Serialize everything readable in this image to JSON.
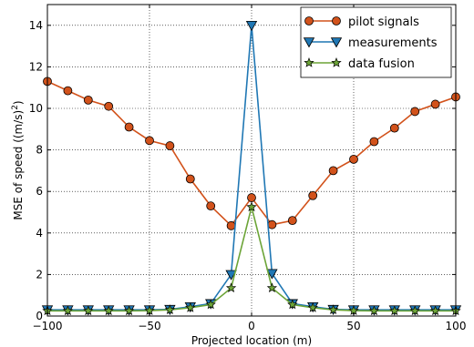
{
  "chart_data": {
    "type": "line",
    "title": "",
    "xlabel": "Projected location (m)",
    "ylabel": "MSE of speed ((m/s)2)",
    "ylabel_parts": {
      "main": "MSE of speed ((m/s)",
      "sup": "2",
      "tail": ")"
    },
    "xlim": [
      -100,
      100
    ],
    "ylim": [
      0,
      15
    ],
    "xticks": [
      -100,
      -50,
      0,
      50,
      100
    ],
    "yticks": [
      0,
      2,
      4,
      6,
      8,
      10,
      12,
      14
    ],
    "xtick_labels": [
      "−100",
      "−50",
      "0",
      "50",
      "100"
    ],
    "ytick_labels": [
      "0",
      "2",
      "4",
      "6",
      "8",
      "10",
      "12",
      "14"
    ],
    "grid": true,
    "legend_position": "top-right",
    "x": [
      -100,
      -90,
      -80,
      -70,
      -60,
      -50,
      -40,
      -30,
      -20,
      -10,
      0,
      10,
      20,
      30,
      40,
      50,
      60,
      70,
      80,
      90,
      100
    ],
    "series": [
      {
        "name": "pilot signals",
        "color": "#d2521b",
        "marker": "circle",
        "values": [
          11.3,
          10.85,
          10.4,
          10.1,
          9.1,
          8.45,
          8.2,
          6.6,
          5.3,
          4.35,
          5.7,
          4.4,
          4.6,
          5.8,
          7.0,
          7.55,
          8.4,
          9.05,
          9.85,
          10.2,
          10.55
        ]
      },
      {
        "name": "measurements",
        "color": "#1f77b4",
        "marker": "triangle-down",
        "values": [
          0.3,
          0.3,
          0.3,
          0.3,
          0.3,
          0.3,
          0.32,
          0.45,
          0.6,
          2.0,
          14.0,
          2.05,
          0.6,
          0.45,
          0.32,
          0.3,
          0.3,
          0.3,
          0.3,
          0.3,
          0.3
        ]
      },
      {
        "name": "data fusion",
        "color": "#6ca437",
        "marker": "star",
        "values": [
          0.25,
          0.25,
          0.25,
          0.25,
          0.25,
          0.26,
          0.3,
          0.4,
          0.55,
          1.35,
          5.25,
          1.35,
          0.55,
          0.4,
          0.3,
          0.26,
          0.25,
          0.25,
          0.25,
          0.25,
          0.25
        ]
      }
    ]
  }
}
